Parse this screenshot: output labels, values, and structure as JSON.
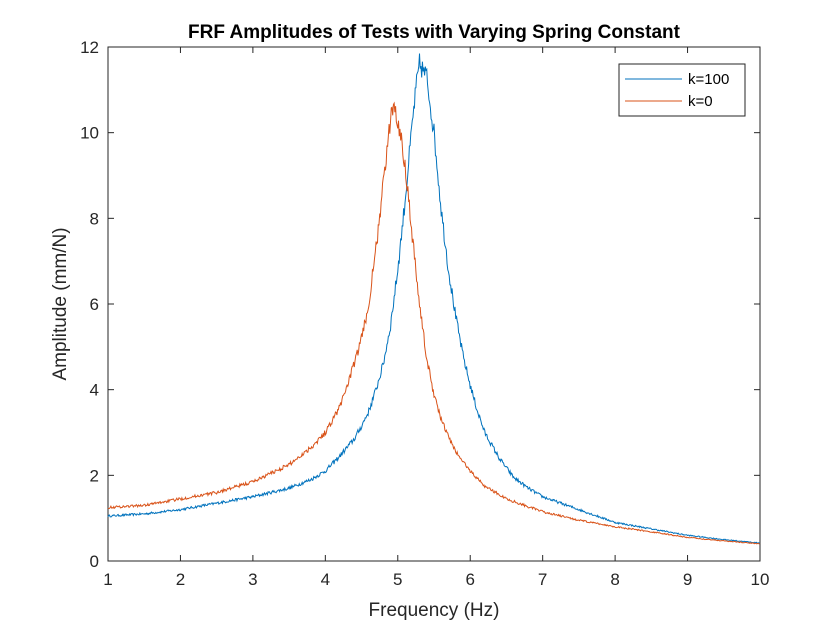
{
  "chart_data": {
    "type": "line",
    "title": "FRF Amplitudes of Tests with Varying Spring Constant",
    "xlabel": "Frequency (Hz)",
    "ylabel": "Amplitude (mm/N)",
    "xlim": [
      1,
      10
    ],
    "ylim": [
      0,
      12
    ],
    "xticks": [
      1,
      2,
      3,
      4,
      5,
      6,
      7,
      8,
      9,
      10
    ],
    "yticks": [
      0,
      2,
      4,
      6,
      8,
      10,
      12
    ],
    "grid": false,
    "legend_position": "top-right",
    "series": [
      {
        "name": "k=100",
        "color": "#0072BD",
        "x": [
          1.0,
          1.5,
          2.0,
          2.5,
          3.0,
          3.5,
          3.8,
          4.0,
          4.2,
          4.4,
          4.5,
          4.6,
          4.7,
          4.8,
          4.9,
          5.0,
          5.1,
          5.2,
          5.25,
          5.3,
          5.4,
          5.5,
          5.6,
          5.7,
          5.8,
          5.9,
          6.0,
          6.1,
          6.2,
          6.4,
          6.6,
          6.8,
          7.0,
          7.5,
          8.0,
          8.5,
          9.0,
          9.5,
          10.0
        ],
        "values": [
          1.05,
          1.1,
          1.2,
          1.35,
          1.5,
          1.7,
          1.9,
          2.1,
          2.45,
          2.85,
          3.15,
          3.5,
          4.0,
          4.6,
          5.5,
          6.8,
          8.4,
          10.2,
          11.0,
          11.6,
          11.3,
          10.0,
          8.2,
          6.8,
          5.7,
          4.8,
          4.1,
          3.5,
          3.0,
          2.4,
          1.95,
          1.7,
          1.5,
          1.2,
          0.9,
          0.75,
          0.6,
          0.5,
          0.42
        ]
      },
      {
        "name": "k=0",
        "color": "#D95319",
        "x": [
          1.0,
          1.5,
          2.0,
          2.5,
          3.0,
          3.5,
          3.8,
          4.0,
          4.2,
          4.4,
          4.5,
          4.6,
          4.7,
          4.8,
          4.9,
          4.95,
          5.0,
          5.1,
          5.2,
          5.3,
          5.4,
          5.5,
          5.6,
          5.7,
          5.8,
          6.0,
          6.2,
          6.5,
          7.0,
          7.5,
          8.0,
          8.5,
          9.0,
          9.5,
          10.0
        ],
        "values": [
          1.25,
          1.3,
          1.45,
          1.6,
          1.85,
          2.25,
          2.65,
          3.0,
          3.6,
          4.6,
          5.2,
          6.0,
          7.3,
          8.8,
          10.3,
          10.7,
          10.3,
          9.3,
          7.6,
          6.0,
          4.7,
          3.9,
          3.3,
          2.9,
          2.55,
          2.1,
          1.75,
          1.45,
          1.15,
          0.95,
          0.8,
          0.68,
          0.55,
          0.47,
          0.4
        ]
      }
    ]
  }
}
